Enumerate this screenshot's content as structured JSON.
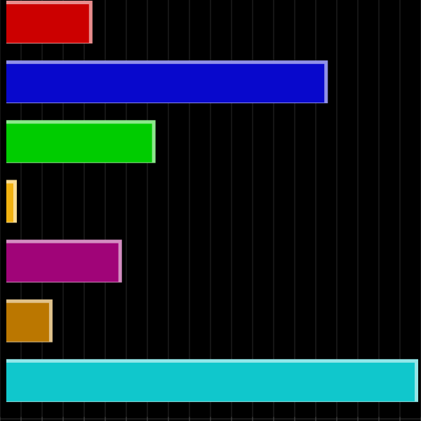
{
  "chart_data": {
    "type": "bar",
    "orientation": "horizontal",
    "grid": true,
    "xlim": [
      0,
      98
    ],
    "series": [
      {
        "value": 20.5,
        "color": "#CC0000"
      },
      {
        "value": 76.5,
        "color": "#0808CC"
      },
      {
        "value": 35.5,
        "color": "#00CC00"
      },
      {
        "value": 2.5,
        "color": "#F2B210"
      },
      {
        "value": 27.5,
        "color": "#A00478"
      },
      {
        "value": 11.0,
        "color": "#BB7700"
      },
      {
        "value": 98.0,
        "color": "#10C7CC"
      }
    ]
  }
}
